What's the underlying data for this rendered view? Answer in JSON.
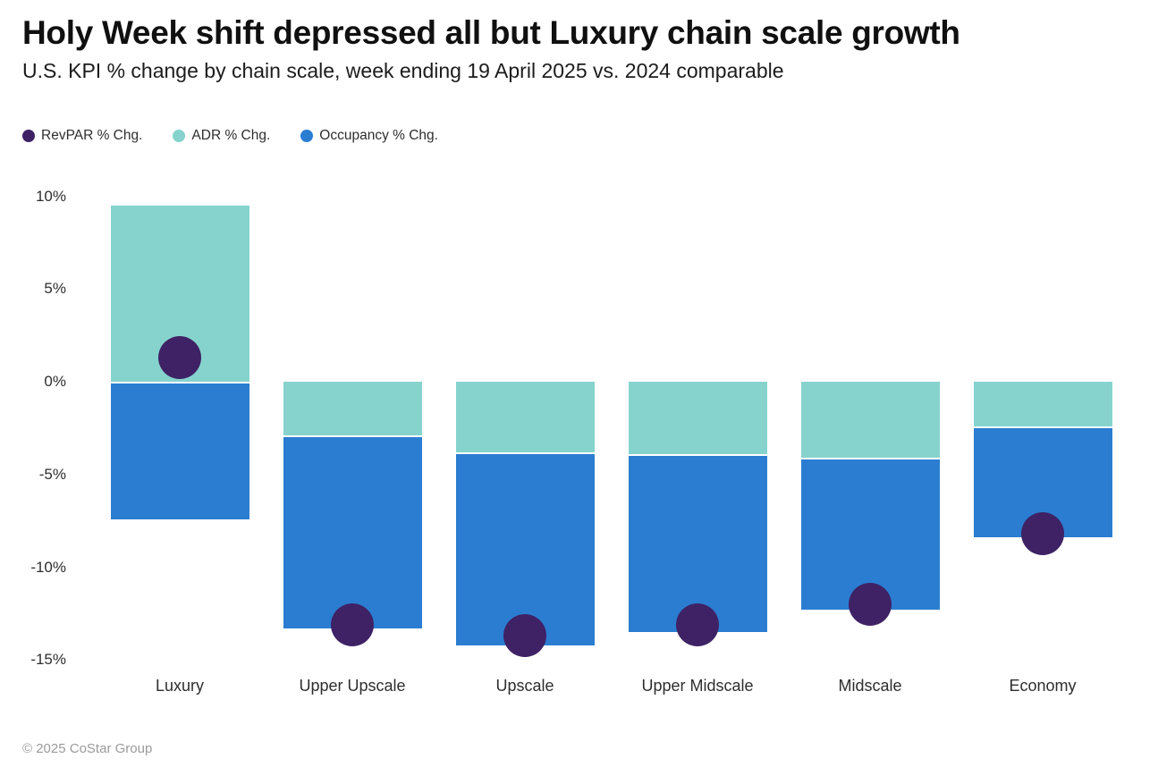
{
  "chart_data": {
    "type": "bar",
    "subtype": "stacked bars (ADR + Occupancy) with RevPAR dot overlay",
    "title": "Holy Week shift depressed all but Luxury chain scale growth",
    "subtitle": "U.S. KPI % change by chain scale, week ending 19 April 2025 vs. 2024 comparable",
    "categories": [
      "Luxury",
      "Upper Upscale",
      "Upscale",
      "Upper Midscale",
      "Midscale",
      "Economy"
    ],
    "series": [
      {
        "name": "RevPAR % Chg.",
        "render": "dot",
        "color": "#3E2265",
        "values": [
          1.3,
          -13.1,
          -13.7,
          -13.1,
          -12.0,
          -8.2
        ]
      },
      {
        "name": "ADR % Chg.",
        "render": "bar",
        "color": "#86D3CD",
        "values": [
          9.5,
          -2.9,
          -3.8,
          -3.9,
          -4.1,
          -2.4
        ]
      },
      {
        "name": "Occupancy % Chg.",
        "render": "bar",
        "color": "#2B7DD1",
        "values": [
          -7.4,
          -10.4,
          -10.4,
          -9.6,
          -8.2,
          -6.0
        ]
      }
    ],
    "yticks": [
      10,
      5,
      0,
      -5,
      -10,
      -15
    ],
    "ytick_suffix": "%",
    "ylim": [
      -16.5,
      10.5
    ],
    "xlabel": "",
    "ylabel": "",
    "grid": false,
    "legend_position": "top-left",
    "stacking_note": "Occupancy bar is stacked beneath the ADR bar from the zero line; RevPAR shown as a dot near the stack end"
  },
  "footer": {
    "copyright": "© 2025 CoStar Group"
  }
}
